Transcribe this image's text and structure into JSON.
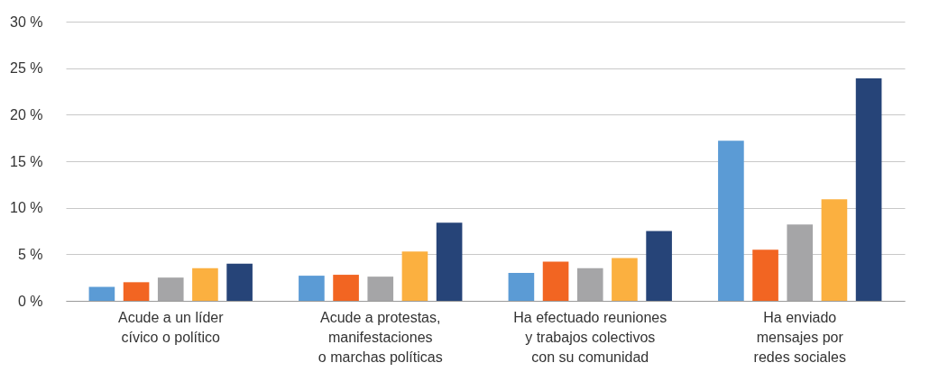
{
  "chart_data": {
    "type": "bar",
    "categories": [
      "Acude a un líder\ncívico o político",
      "Acude a protestas,\nmanifestaciones\no marchas políticas",
      "Ha efectuado reuniones\ny trabajos colectivos\ncon su comunidad",
      "Ha enviado\nmensajes por\nredes sociales"
    ],
    "series": [
      {
        "color": "#5b9bd5",
        "values": [
          1.5,
          2.7,
          3.0,
          17.2
        ]
      },
      {
        "color": "#f26522",
        "values": [
          2.0,
          2.8,
          4.2,
          5.5
        ]
      },
      {
        "color": "#a5a5a7",
        "values": [
          2.5,
          2.6,
          3.5,
          8.2
        ]
      },
      {
        "color": "#fbb040",
        "values": [
          3.5,
          5.3,
          4.6,
          10.9
        ]
      },
      {
        "color": "#264478",
        "values": [
          4.0,
          8.4,
          7.5,
          23.9
        ]
      }
    ],
    "ylim": [
      0,
      30
    ],
    "yticks": [
      {
        "value": 0,
        "label": "0 %"
      },
      {
        "value": 5,
        "label": "5 %"
      },
      {
        "value": 10,
        "label": "10 %"
      },
      {
        "value": 15,
        "label": "15 %"
      },
      {
        "value": 20,
        "label": "20 %"
      },
      {
        "value": 25,
        "label": "25 %"
      },
      {
        "value": 30,
        "label": "30 %"
      }
    ],
    "grid": "y"
  }
}
